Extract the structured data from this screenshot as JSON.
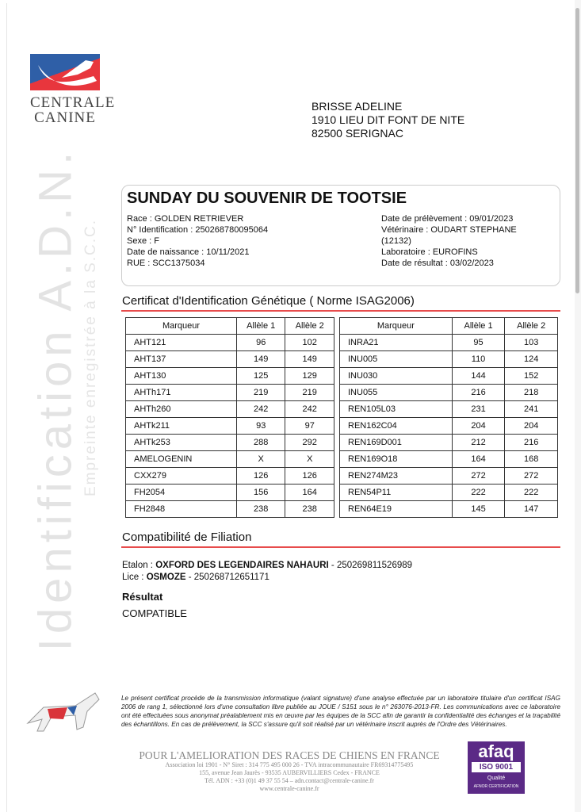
{
  "logo": {
    "text": "CENTRALE CANINE"
  },
  "watermark": {
    "main": "Identification A.D.N.",
    "sub": "Empreinte enregistrée à la S.C.C."
  },
  "address": [
    "BRISSE ADELINE",
    "1910 LIEU DIT FONT DE NITE",
    "82500 SERIGNAC"
  ],
  "dog": {
    "name": "SUNDAY DU SOUVENIR DE TOOTSIE",
    "left": [
      "Race : GOLDEN RETRIEVER",
      "N° Identification : 250268780095064",
      "Sexe : F",
      "Date de naissance : 10/11/2021",
      "RUE : SCC1375034"
    ],
    "right": [
      "Date de prélèvement : 09/01/2023",
      "Vétérinaire : OUDART STEPHANE",
      "(12132)",
      "Laboratoire : EUROFINS",
      "Date de résultat : 03/02/2023"
    ]
  },
  "certificate": {
    "heading": "Certificat d'Identification Génétique ( Norme ISAG2006)",
    "headers": [
      "Marqueur",
      "Allèle 1",
      "Allèle 2"
    ],
    "left_rows": [
      [
        "AHT121",
        "96",
        "102"
      ],
      [
        "AHT137",
        "149",
        "149"
      ],
      [
        "AHT130",
        "125",
        "129"
      ],
      [
        "AHTh171",
        "219",
        "219"
      ],
      [
        "AHTh260",
        "242",
        "242"
      ],
      [
        "AHTk211",
        "93",
        "97"
      ],
      [
        "AHTk253",
        "288",
        "292"
      ],
      [
        "AMELOGENIN",
        "X",
        "X"
      ],
      [
        "CXX279",
        "126",
        "126"
      ],
      [
        "FH2054",
        "156",
        "164"
      ],
      [
        "FH2848",
        "238",
        "238"
      ]
    ],
    "right_rows": [
      [
        "INRA21",
        "95",
        "103"
      ],
      [
        "INU005",
        "110",
        "124"
      ],
      [
        "INU030",
        "144",
        "152"
      ],
      [
        "INU055",
        "216",
        "218"
      ],
      [
        "REN105L03",
        "231",
        "241"
      ],
      [
        "REN162C04",
        "204",
        "204"
      ],
      [
        "REN169D001",
        "212",
        "216"
      ],
      [
        "REN169O18",
        "164",
        "168"
      ],
      [
        "REN274M23",
        "272",
        "272"
      ],
      [
        "REN54P11",
        "222",
        "222"
      ],
      [
        "REN64E19",
        "145",
        "147"
      ]
    ]
  },
  "filiation": {
    "heading": "Compatibilité de Filiation",
    "etalon_label": "Etalon : ",
    "etalon_name": "OXFORD DES LEGENDAIRES NAHAURI",
    "etalon_id": " - 250269811526989",
    "lice_label": "Lice : ",
    "lice_name": "OSMOZE",
    "lice_id": " - 250268712651171",
    "result_label": "Résultat",
    "result": "COMPATIBLE"
  },
  "disclaimer": "Le présent certificat procède de la transmission informatique (valant signature) d'une analyse effectuée par un laboratoire titulaire d'un certificat ISAG 2006 de rang 1, sélectionné lors d'une consultation libre publiée au JOUE / S151 sous le n° 263076-2013-FR. Les communications avec ce laboratoire ont été effectuées sous anonymat préalablement mis en œuvre par les équipes de la SCC afin de garantir la confidentialité des échanges et la traçabilité des échantillons. En cas de prélèvement, la SCC s'assure qu'il soit réalisé par un vétérinaire inscrit auprès de l'Ordre des Vétérinaires.",
  "footer": {
    "title": "POUR L'AMELIORATION DES RACES DE CHIENS EN FRANCE",
    "lines": [
      "Association loi 1901 - N° Siret : 314 775 495 000 26 - TVA intracommunautaire FR69314775495",
      "155, avenue Jean Jaurès - 93535 AUBERVILLIERS Cedex - FRANCE",
      "Tél. ADN : +33 (0)1 49 37 55 54 – adn.contact@centrale-canine.fr",
      "www.centrale-canine.fr"
    ]
  },
  "afaq": {
    "brand": "afaq",
    "iso": "ISO 9001",
    "q": "Qualité",
    "cert": "AFNOR CERTIFICATION"
  },
  "colors": {
    "accent_rule": "#e74c4c",
    "afaq": "#5b2a86",
    "logo_blue": "#2f5fa7",
    "logo_red": "#e8363d"
  }
}
